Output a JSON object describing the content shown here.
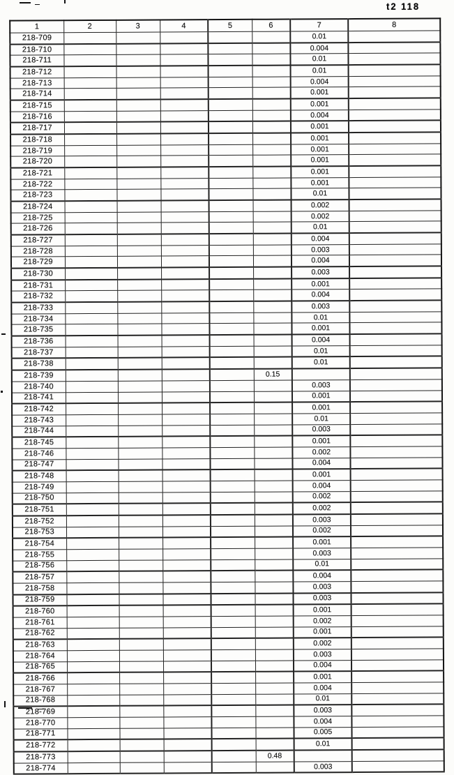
{
  "page": {
    "stamp": "t2 118"
  },
  "table": {
    "columns": [
      "1",
      "2",
      "3",
      "4",
      "5",
      "6",
      "7",
      "8"
    ],
    "rows": [
      {
        "id": "218-709",
        "col6": "",
        "col7": "0.01"
      },
      {
        "id": "218-710",
        "col6": "",
        "col7": "0.004"
      },
      {
        "id": "218-711",
        "col6": "",
        "col7": "0.01"
      },
      {
        "id": "218-712",
        "col6": "",
        "col7": "0.01"
      },
      {
        "id": "218-713",
        "col6": "",
        "col7": "0.004"
      },
      {
        "id": "218-714",
        "col6": "",
        "col7": "0.001"
      },
      {
        "id": "218-715",
        "col6": "",
        "col7": "0.001"
      },
      {
        "id": "218-716",
        "col6": "",
        "col7": "0.004"
      },
      {
        "id": "218-717",
        "col6": "",
        "col7": "0.001"
      },
      {
        "id": "218-718",
        "col6": "",
        "col7": "0.001"
      },
      {
        "id": "218-719",
        "col6": "",
        "col7": "0.001"
      },
      {
        "id": "218-720",
        "col6": "",
        "col7": "0.001"
      },
      {
        "id": "218-721",
        "col6": "",
        "col7": "0.001"
      },
      {
        "id": "218-722",
        "col6": "",
        "col7": "0.001"
      },
      {
        "id": "218-723",
        "col6": "",
        "col7": "0.01"
      },
      {
        "id": "218-724",
        "col6": "",
        "col7": "0.002"
      },
      {
        "id": "218-725",
        "col6": "",
        "col7": "0.002"
      },
      {
        "id": "218-726",
        "col6": "",
        "col7": "0.01"
      },
      {
        "id": "218-727",
        "col6": "",
        "col7": "0.004"
      },
      {
        "id": "218-728",
        "col6": "",
        "col7": "0.003"
      },
      {
        "id": "218-729",
        "col6": "",
        "col7": "0.004"
      },
      {
        "id": "218-730",
        "col6": "",
        "col7": "0.003"
      },
      {
        "id": "218-731",
        "col6": "",
        "col7": "0.001"
      },
      {
        "id": "218-732",
        "col6": "",
        "col7": "0.004"
      },
      {
        "id": "218-733",
        "col6": "",
        "col7": "0.003"
      },
      {
        "id": "218-734",
        "col6": "",
        "col7": "0.01"
      },
      {
        "id": "218-735",
        "col6": "",
        "col7": "0.001"
      },
      {
        "id": "218-736",
        "col6": "",
        "col7": "0.004"
      },
      {
        "id": "218-737",
        "col6": "",
        "col7": "0.01"
      },
      {
        "id": "218-738",
        "col6": "",
        "col7": "0.01"
      },
      {
        "id": "218-739",
        "col6": "0.15",
        "col7": ""
      },
      {
        "id": "218-740",
        "col6": "",
        "col7": "0.003"
      },
      {
        "id": "218-741",
        "col6": "",
        "col7": "0.001"
      },
      {
        "id": "218-742",
        "col6": "",
        "col7": "0.001"
      },
      {
        "id": "218-743",
        "col6": "",
        "col7": "0.01"
      },
      {
        "id": "218-744",
        "col6": "",
        "col7": "0.003"
      },
      {
        "id": "218-745",
        "col6": "",
        "col7": "0.001"
      },
      {
        "id": "218-746",
        "col6": "",
        "col7": "0.002"
      },
      {
        "id": "218-747",
        "col6": "",
        "col7": "0.004"
      },
      {
        "id": "218-748",
        "col6": "",
        "col7": "0.001"
      },
      {
        "id": "218-749",
        "col6": "",
        "col7": "0.004"
      },
      {
        "id": "218-750",
        "col6": "",
        "col7": "0.002"
      },
      {
        "id": "218-751",
        "col6": "",
        "col7": "0.002"
      },
      {
        "id": "218-752",
        "col6": "",
        "col7": "0.003"
      },
      {
        "id": "218-753",
        "col6": "",
        "col7": "0.002"
      },
      {
        "id": "218-754",
        "col6": "",
        "col7": "0.001"
      },
      {
        "id": "218-755",
        "col6": "",
        "col7": "0.003"
      },
      {
        "id": "218-756",
        "col6": "",
        "col7": "0.01"
      },
      {
        "id": "218-757",
        "col6": "",
        "col7": "0.004"
      },
      {
        "id": "218-758",
        "col6": "",
        "col7": "0.003"
      },
      {
        "id": "218-759",
        "col6": "",
        "col7": "0.003"
      },
      {
        "id": "218-760",
        "col6": "",
        "col7": "0.001"
      },
      {
        "id": "218-761",
        "col6": "",
        "col7": "0.002"
      },
      {
        "id": "218-762",
        "col6": "",
        "col7": "0.001"
      },
      {
        "id": "218-763",
        "col6": "",
        "col7": "0.002"
      },
      {
        "id": "218-764",
        "col6": "",
        "col7": "0.003"
      },
      {
        "id": "218-765",
        "col6": "",
        "col7": "0.004"
      },
      {
        "id": "218-766",
        "col6": "",
        "col7": "0.001"
      },
      {
        "id": "218-767",
        "col6": "",
        "col7": "0.004"
      },
      {
        "id": "218-768",
        "col6": "",
        "col7": "0.01"
      },
      {
        "id": "218-769",
        "col6": "",
        "col7": "0.003"
      },
      {
        "id": "218-770",
        "col6": "",
        "col7": "0.004"
      },
      {
        "id": "218-771",
        "col6": "",
        "col7": "0.005"
      },
      {
        "id": "218-772",
        "col6": "",
        "col7": "0.01"
      },
      {
        "id": "218-773",
        "col6": "0.48",
        "col7": ""
      },
      {
        "id": "218-774",
        "col6": "",
        "col7": "0.003"
      }
    ]
  }
}
